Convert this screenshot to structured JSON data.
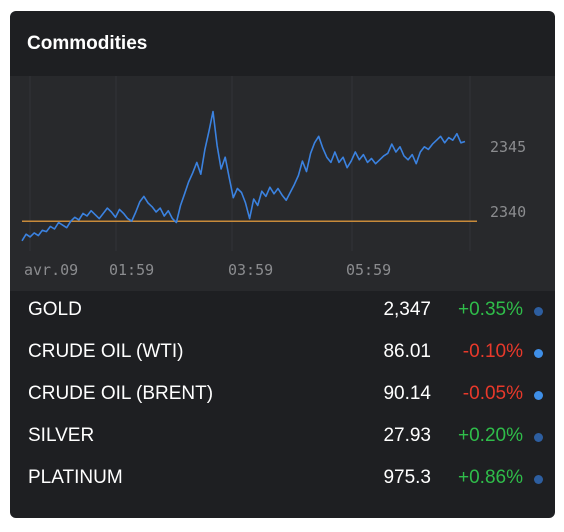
{
  "widget": {
    "title": "Commodities"
  },
  "chart_data": {
    "type": "line",
    "x_ticks": [
      "avr.09",
      "01:59",
      "03:59",
      "05:59"
    ],
    "y_ticks": [
      2340,
      2345
    ],
    "ylim": [
      2337.4,
      2349.5
    ],
    "reference_line": 2339.3,
    "colors": {
      "line": "#3b82e0",
      "reference": "#c88a3a"
    },
    "series": [
      {
        "values": [
          2337.8,
          2338.3,
          2338.1,
          2338.4,
          2338.2,
          2338.6,
          2338.5,
          2338.9,
          2338.7,
          2339.2,
          2339.0,
          2338.8,
          2339.3,
          2339.6,
          2339.4,
          2339.9,
          2339.7,
          2340.1,
          2339.8,
          2339.5,
          2339.9,
          2340.3,
          2340.0,
          2339.6,
          2340.2,
          2339.9,
          2339.5,
          2339.3,
          2340.0,
          2340.8,
          2341.2,
          2340.7,
          2340.4,
          2340.0,
          2340.3,
          2339.7,
          2340.1,
          2339.5,
          2339.2,
          2340.5,
          2341.4,
          2342.3,
          2343.0,
          2343.8,
          2342.9,
          2344.8,
          2346.2,
          2347.7,
          2345.1,
          2343.3,
          2344.2,
          2342.6,
          2341.1,
          2341.8,
          2341.5,
          2340.7,
          2339.5,
          2341.0,
          2340.5,
          2341.6,
          2341.2,
          2341.9,
          2341.4,
          2341.8,
          2341.3,
          2340.9,
          2341.5,
          2342.1,
          2342.8,
          2343.9,
          2343.1,
          2344.5,
          2345.3,
          2345.8,
          2344.9,
          2344.2,
          2343.8,
          2344.6,
          2343.8,
          2344.2,
          2343.4,
          2343.9,
          2344.6,
          2344.0,
          2344.4,
          2343.8,
          2344.1,
          2343.7,
          2344.0,
          2344.3,
          2344.5,
          2345.2,
          2344.6,
          2345.0,
          2344.3,
          2344.0,
          2344.4,
          2343.7,
          2344.6,
          2345.0,
          2344.8,
          2345.2,
          2345.5,
          2345.8,
          2345.3,
          2345.7,
          2345.5,
          2346.0,
          2345.3,
          2345.4
        ]
      }
    ]
  },
  "commodities": [
    {
      "name": "GOLD",
      "price": "2,347",
      "change": "+0.35%",
      "direction": "up",
      "dot_color": "#2d5ea0"
    },
    {
      "name": "CRUDE OIL (WTI)",
      "price": "86.01",
      "change": "-0.10%",
      "direction": "down",
      "dot_color": "#3f8fe8"
    },
    {
      "name": "CRUDE OIL (BRENT)",
      "price": "90.14",
      "change": "-0.05%",
      "direction": "down",
      "dot_color": "#3f8fe8"
    },
    {
      "name": "SILVER",
      "price": "27.93",
      "change": "+0.20%",
      "direction": "up",
      "dot_color": "#2d5ea0"
    },
    {
      "name": "PLATINUM",
      "price": "975.3",
      "change": "+0.86%",
      "direction": "up",
      "dot_color": "#2d5ea0"
    }
  ]
}
